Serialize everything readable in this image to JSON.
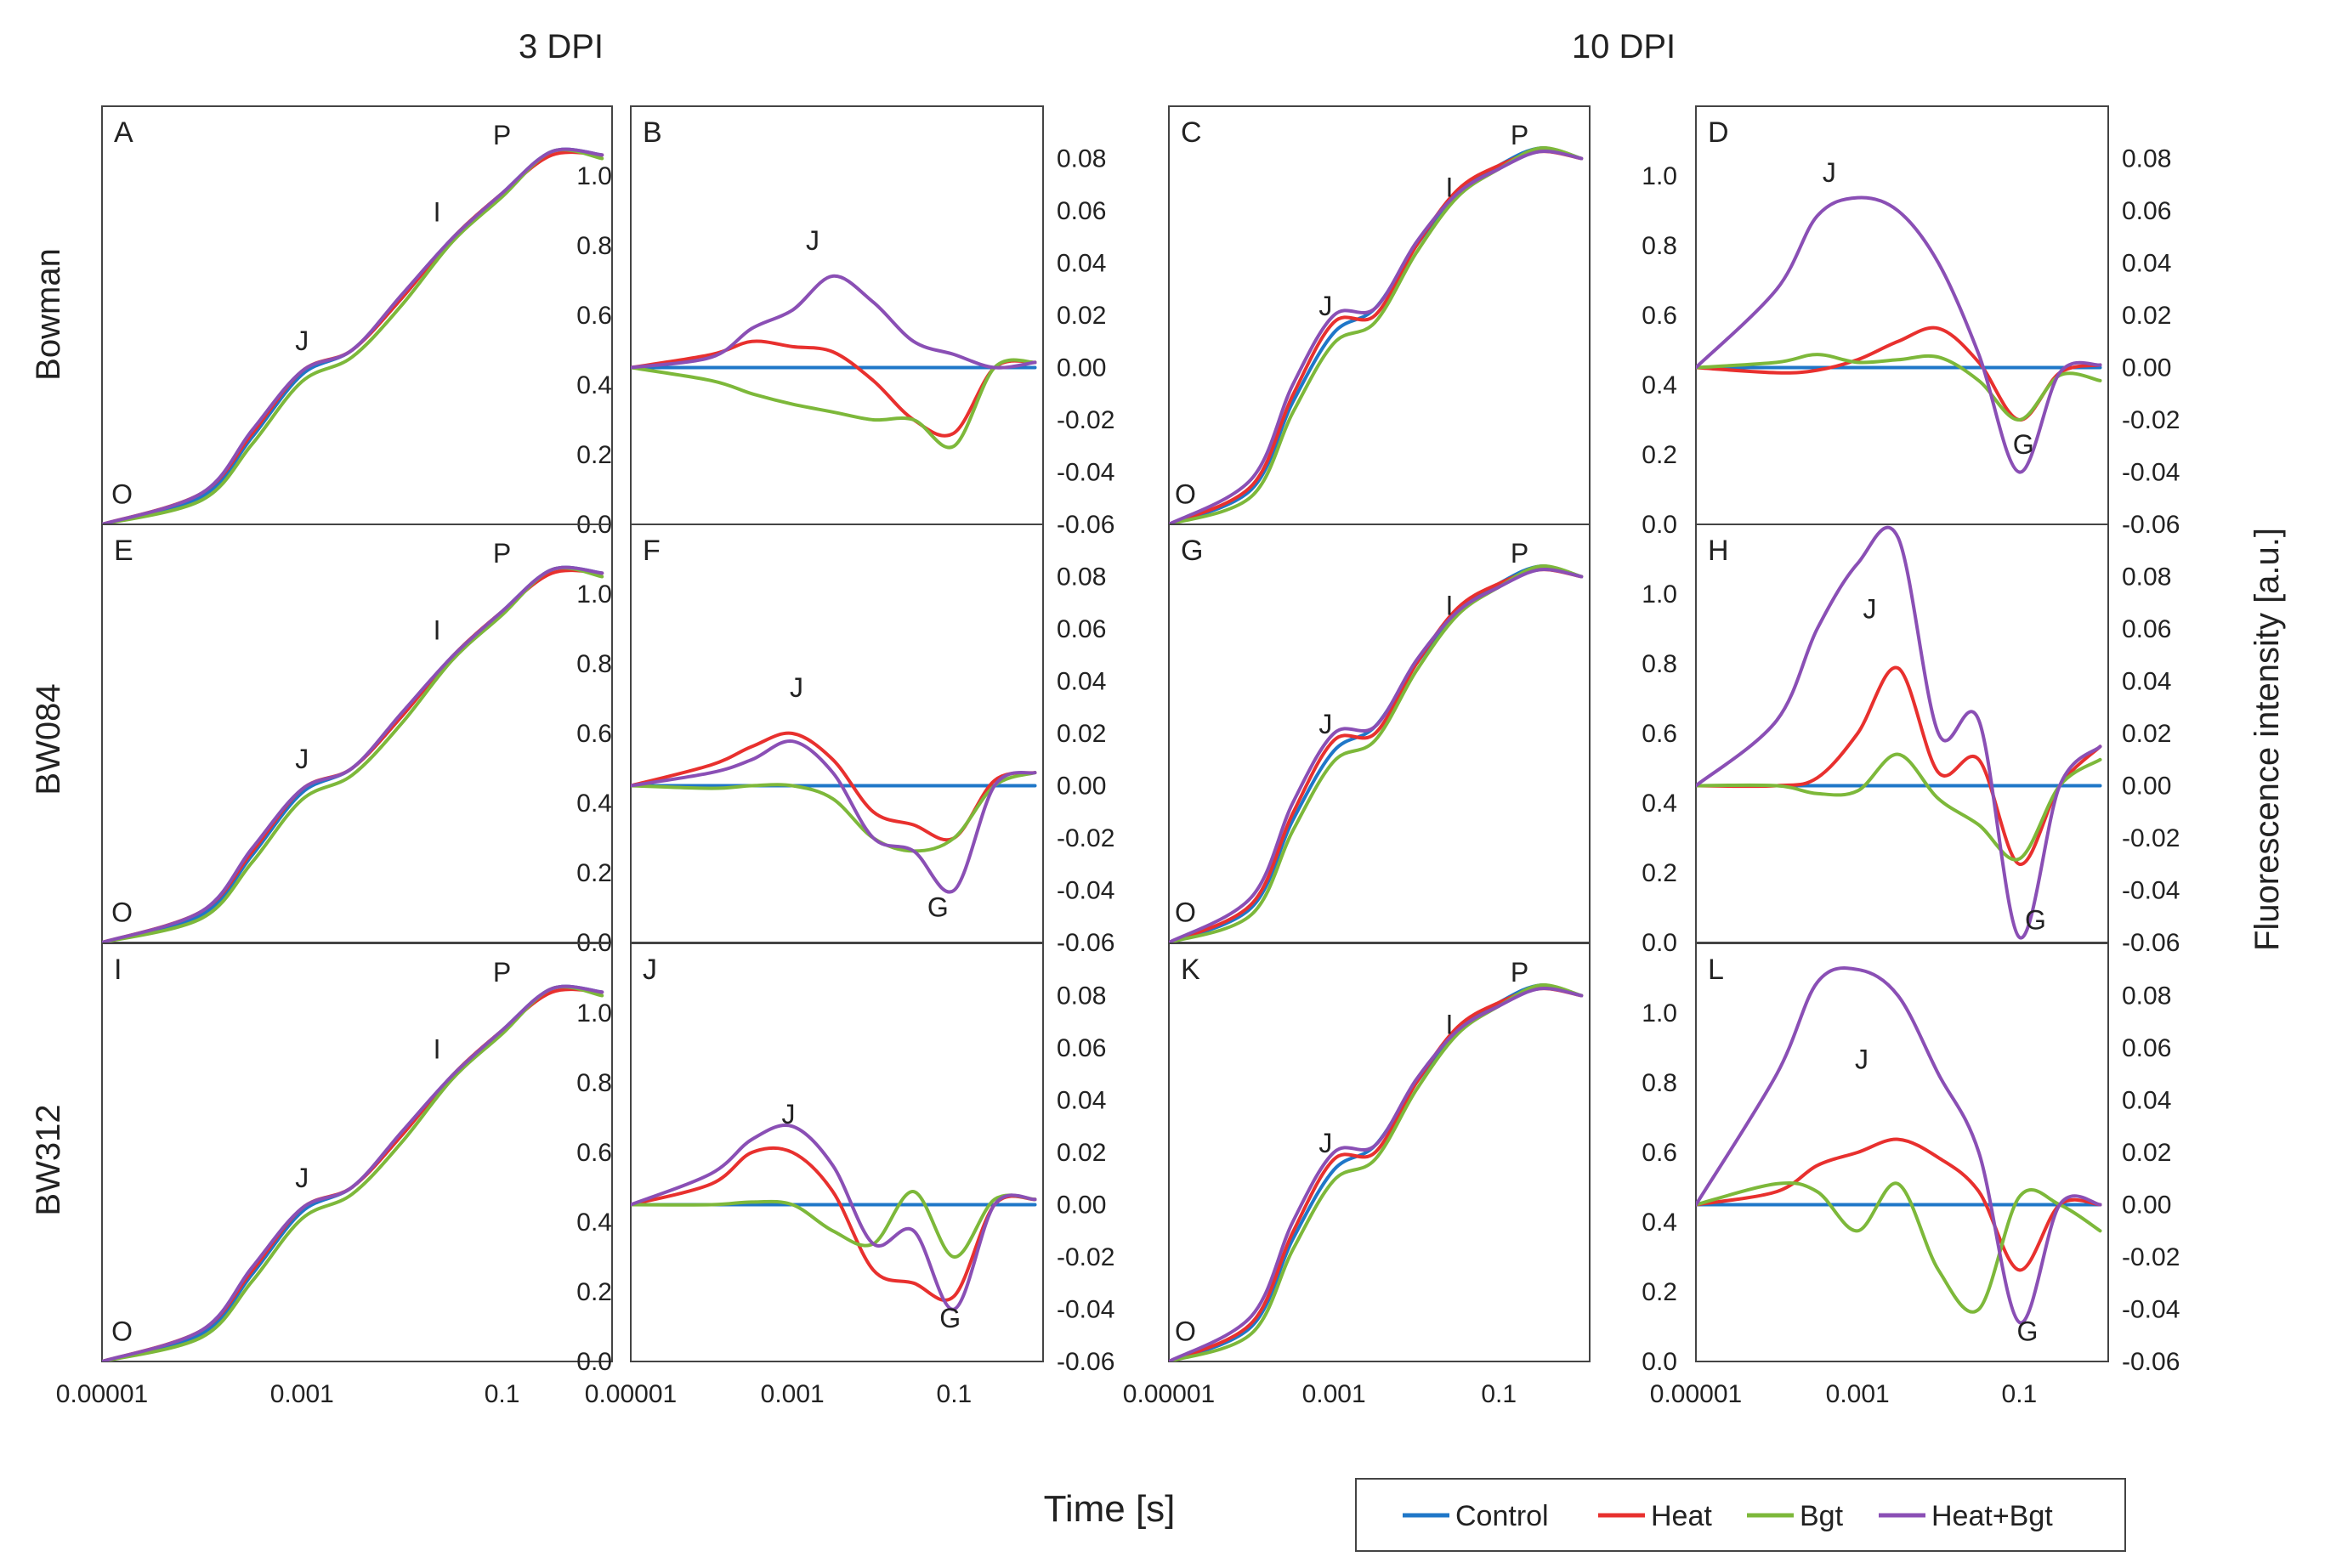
{
  "figure": {
    "column_titles": [
      "3 DPI",
      "10 DPI"
    ],
    "row_labels": [
      "Bowman",
      "BW084",
      "BW312"
    ],
    "xlabel": "Time [s]",
    "ylabel": "Fluorescence intensity [a.u.]"
  },
  "legend": [
    {
      "name": "Control",
      "color": "#1F77C8"
    },
    {
      "name": "Heat",
      "color": "#E8302E"
    },
    {
      "name": "Bgt",
      "color": "#7DB83A"
    },
    {
      "name": "Heat+Bgt",
      "color": "#8A4FB5"
    }
  ],
  "chart_data": {
    "type": "line",
    "x_scale": "log",
    "x_ticks": [
      "0.00001",
      "0.001",
      "0.1"
    ],
    "x_range": [
      -5,
      0.1
    ],
    "curve_axis": {
      "ylim": [
        0,
        1.2
      ],
      "ticks": [
        "0.0",
        "0.2",
        "0.4",
        "0.6",
        "0.8",
        "1.0"
      ]
    },
    "diff_axis": {
      "ylim": [
        -0.06,
        0.1
      ],
      "ticks": [
        "-0.06",
        "-0.04",
        "-0.02",
        "0.00",
        "0.02",
        "0.04",
        "0.06",
        "0.08"
      ]
    },
    "x_log": [
      -5,
      -4,
      -3.5,
      -3,
      -2.5,
      -2,
      -1.5,
      -1,
      -0.5,
      0
    ],
    "panels": [
      {
        "letter": "A",
        "kind": "curve",
        "labels": {
          "O": [
            -4.8,
            0.06
          ],
          "J": [
            -3,
            0.5
          ],
          "I": [
            -1.65,
            0.87
          ],
          "P": [
            -1,
            1.09
          ]
        },
        "series": [
          {
            "name": "Control",
            "values": [
              0,
              0.08,
              0.25,
              0.43,
              0.5,
              0.65,
              0.82,
              0.95,
              1.07,
              1.06
            ]
          },
          {
            "name": "Heat",
            "values": [
              0,
              0.09,
              0.26,
              0.44,
              0.5,
              0.65,
              0.82,
              0.95,
              1.06,
              1.06
            ]
          },
          {
            "name": "Bgt",
            "values": [
              0,
              0.07,
              0.23,
              0.41,
              0.48,
              0.63,
              0.81,
              0.94,
              1.07,
              1.05
            ]
          },
          {
            "name": "Heat+Bgt",
            "values": [
              0,
              0.09,
              0.27,
              0.44,
              0.5,
              0.66,
              0.82,
              0.95,
              1.07,
              1.06
            ]
          }
        ]
      },
      {
        "letter": "B",
        "kind": "diff",
        "labels": {
          "J": [
            -2.75,
            0.045
          ]
        },
        "series": [
          {
            "name": "Control",
            "values": [
              0,
              0,
              0,
              0,
              0,
              0,
              0,
              0,
              0,
              0
            ]
          },
          {
            "name": "Heat",
            "values": [
              0,
              0.005,
              0.01,
              0.008,
              0.006,
              -0.005,
              -0.02,
              -0.025,
              0,
              0.002
            ]
          },
          {
            "name": "Bgt",
            "values": [
              0,
              -0.005,
              -0.01,
              -0.014,
              -0.017,
              -0.02,
              -0.02,
              -0.03,
              0,
              0.002
            ]
          },
          {
            "name": "Heat+Bgt",
            "values": [
              0,
              0.004,
              0.015,
              0.022,
              0.035,
              0.025,
              0.01,
              0.005,
              0,
              0.002
            ]
          }
        ]
      },
      {
        "letter": "C",
        "kind": "curve",
        "labels": {
          "O": [
            -4.8,
            0.06
          ],
          "J": [
            -3.1,
            0.6
          ],
          "I": [
            -1.6,
            0.94
          ],
          "P": [
            -0.75,
            1.09
          ]
        },
        "series": [
          {
            "name": "Control",
            "values": [
              0,
              0.1,
              0.35,
              0.55,
              0.62,
              0.8,
              0.95,
              1.03,
              1.08,
              1.05
            ]
          },
          {
            "name": "Heat",
            "values": [
              0,
              0.11,
              0.37,
              0.58,
              0.6,
              0.8,
              0.96,
              1.03,
              1.07,
              1.05
            ]
          },
          {
            "name": "Bgt",
            "values": [
              0,
              0.08,
              0.32,
              0.52,
              0.58,
              0.78,
              0.94,
              1.02,
              1.08,
              1.05
            ]
          },
          {
            "name": "Heat+Bgt",
            "values": [
              0,
              0.13,
              0.4,
              0.6,
              0.62,
              0.81,
              0.95,
              1.02,
              1.07,
              1.05
            ]
          }
        ]
      },
      {
        "letter": "D",
        "kind": "diff",
        "labels": {
          "J": [
            -3.35,
            0.071
          ],
          "G": [
            -0.95,
            -0.033
          ]
        },
        "series": [
          {
            "name": "Control",
            "values": [
              0,
              0,
              0,
              0,
              0,
              0,
              0,
              0,
              0,
              0
            ]
          },
          {
            "name": "Heat",
            "values": [
              0,
              -0.002,
              -0.001,
              0.003,
              0.01,
              0.015,
              0.002,
              -0.02,
              -0.002,
              0.001
            ]
          },
          {
            "name": "Bgt",
            "values": [
              0,
              0.002,
              0.005,
              0.002,
              0.003,
              0.004,
              -0.005,
              -0.02,
              -0.003,
              -0.005
            ]
          },
          {
            "name": "Heat+Bgt",
            "values": [
              0,
              0.03,
              0.058,
              0.065,
              0.06,
              0.04,
              0.005,
              -0.04,
              -0.002,
              0.001
            ]
          }
        ]
      },
      {
        "letter": "E",
        "kind": "curve",
        "labels": {
          "O": [
            -4.8,
            0.06
          ],
          "J": [
            -3,
            0.5
          ],
          "I": [
            -1.65,
            0.87
          ],
          "P": [
            -1,
            1.09
          ]
        },
        "series": [
          {
            "name": "Control",
            "values": [
              0,
              0.08,
              0.25,
              0.43,
              0.5,
              0.65,
              0.82,
              0.95,
              1.07,
              1.06
            ]
          },
          {
            "name": "Heat",
            "values": [
              0,
              0.09,
              0.26,
              0.44,
              0.5,
              0.65,
              0.82,
              0.95,
              1.06,
              1.06
            ]
          },
          {
            "name": "Bgt",
            "values": [
              0,
              0.07,
              0.23,
              0.41,
              0.48,
              0.63,
              0.81,
              0.94,
              1.07,
              1.05
            ]
          },
          {
            "name": "Heat+Bgt",
            "values": [
              0,
              0.09,
              0.27,
              0.44,
              0.5,
              0.66,
              0.82,
              0.95,
              1.07,
              1.06
            ]
          }
        ]
      },
      {
        "letter": "F",
        "kind": "diff",
        "labels": {
          "J": [
            -2.95,
            0.034
          ],
          "G": [
            -1.2,
            -0.05
          ]
        },
        "series": [
          {
            "name": "Control",
            "values": [
              0,
              0,
              0,
              0,
              0,
              0,
              0,
              0,
              0,
              0
            ]
          },
          {
            "name": "Heat",
            "values": [
              0,
              0.008,
              0.015,
              0.02,
              0.01,
              -0.01,
              -0.015,
              -0.02,
              0.002,
              0.005
            ]
          },
          {
            "name": "Bgt",
            "values": [
              0,
              -0.001,
              0,
              0,
              -0.005,
              -0.02,
              -0.025,
              -0.02,
              0,
              0.005
            ]
          },
          {
            "name": "Heat+Bgt",
            "values": [
              0,
              0.005,
              0.01,
              0.017,
              0.005,
              -0.02,
              -0.025,
              -0.04,
              0,
              0.005
            ]
          }
        ]
      },
      {
        "letter": "G",
        "kind": "curve",
        "labels": {
          "O": [
            -4.8,
            0.06
          ],
          "J": [
            -3.1,
            0.6
          ],
          "I": [
            -1.6,
            0.94
          ],
          "P": [
            -0.75,
            1.09
          ]
        },
        "series": [
          {
            "name": "Control",
            "values": [
              0,
              0.1,
              0.35,
              0.55,
              0.62,
              0.8,
              0.95,
              1.03,
              1.08,
              1.05
            ]
          },
          {
            "name": "Heat",
            "values": [
              0,
              0.11,
              0.37,
              0.58,
              0.6,
              0.8,
              0.96,
              1.03,
              1.07,
              1.05
            ]
          },
          {
            "name": "Bgt",
            "values": [
              0,
              0.08,
              0.32,
              0.52,
              0.58,
              0.78,
              0.94,
              1.02,
              1.08,
              1.05
            ]
          },
          {
            "name": "Heat+Bgt",
            "values": [
              0,
              0.13,
              0.4,
              0.6,
              0.62,
              0.81,
              0.95,
              1.02,
              1.07,
              1.05
            ]
          }
        ]
      },
      {
        "letter": "H",
        "kind": "diff",
        "labels": {
          "J": [
            -2.85,
            0.064
          ],
          "G": [
            -0.8,
            -0.055
          ]
        },
        "series": [
          {
            "name": "Control",
            "values": [
              0,
              0,
              0,
              0,
              0,
              0,
              0,
              0,
              0,
              0
            ]
          },
          {
            "name": "Heat",
            "values": [
              0,
              0,
              0.003,
              0.02,
              0.045,
              0.005,
              0.01,
              -0.03,
              0,
              0.015
            ]
          },
          {
            "name": "Bgt",
            "values": [
              0,
              0,
              -0.003,
              -0.002,
              0.012,
              -0.005,
              -0.015,
              -0.028,
              0,
              0.01
            ]
          },
          {
            "name": "Heat+Bgt",
            "values": [
              0,
              0.025,
              0.06,
              0.085,
              0.095,
              0.02,
              0.025,
              -0.058,
              0,
              0.015
            ]
          }
        ]
      },
      {
        "letter": "I",
        "kind": "curve",
        "labels": {
          "O": [
            -4.8,
            0.06
          ],
          "J": [
            -3,
            0.5
          ],
          "I": [
            -1.65,
            0.87
          ],
          "P": [
            -1,
            1.09
          ]
        },
        "series": [
          {
            "name": "Control",
            "values": [
              0,
              0.08,
              0.25,
              0.43,
              0.5,
              0.65,
              0.82,
              0.95,
              1.07,
              1.06
            ]
          },
          {
            "name": "Heat",
            "values": [
              0,
              0.09,
              0.26,
              0.44,
              0.5,
              0.65,
              0.82,
              0.95,
              1.06,
              1.06
            ]
          },
          {
            "name": "Bgt",
            "values": [
              0,
              0.07,
              0.23,
              0.41,
              0.48,
              0.63,
              0.81,
              0.94,
              1.07,
              1.05
            ]
          },
          {
            "name": "Heat+Bgt",
            "values": [
              0,
              0.09,
              0.27,
              0.44,
              0.5,
              0.66,
              0.82,
              0.95,
              1.07,
              1.06
            ]
          }
        ]
      },
      {
        "letter": "J",
        "kind": "diff",
        "labels": {
          "J": [
            -3.05,
            0.031
          ],
          "G": [
            -1.05,
            -0.047
          ]
        },
        "series": [
          {
            "name": "Control",
            "values": [
              0,
              0,
              0,
              0,
              0,
              0,
              0,
              0,
              0,
              0
            ]
          },
          {
            "name": "Heat",
            "values": [
              0,
              0.008,
              0.02,
              0.02,
              0.005,
              -0.025,
              -0.03,
              -0.035,
              0,
              0.002
            ]
          },
          {
            "name": "Bgt",
            "values": [
              0,
              0,
              0.001,
              0,
              -0.01,
              -0.015,
              0.005,
              -0.02,
              0.002,
              0.002
            ]
          },
          {
            "name": "Heat+Bgt",
            "values": [
              0,
              0.012,
              0.025,
              0.03,
              0.015,
              -0.015,
              -0.01,
              -0.04,
              0,
              0.002
            ]
          }
        ]
      },
      {
        "letter": "K",
        "kind": "curve",
        "labels": {
          "O": [
            -4.8,
            0.06
          ],
          "J": [
            -3.1,
            0.6
          ],
          "I": [
            -1.6,
            0.94
          ],
          "P": [
            -0.75,
            1.09
          ]
        },
        "series": [
          {
            "name": "Control",
            "values": [
              0,
              0.1,
              0.35,
              0.55,
              0.62,
              0.8,
              0.95,
              1.03,
              1.08,
              1.05
            ]
          },
          {
            "name": "Heat",
            "values": [
              0,
              0.11,
              0.37,
              0.58,
              0.6,
              0.8,
              0.96,
              1.03,
              1.07,
              1.05
            ]
          },
          {
            "name": "Bgt",
            "values": [
              0,
              0.08,
              0.32,
              0.52,
              0.58,
              0.78,
              0.94,
              1.02,
              1.08,
              1.05
            ]
          },
          {
            "name": "Heat+Bgt",
            "values": [
              0,
              0.13,
              0.4,
              0.6,
              0.62,
              0.81,
              0.95,
              1.02,
              1.07,
              1.05
            ]
          }
        ]
      },
      {
        "letter": "L",
        "kind": "diff",
        "labels": {
          "J": [
            -2.95,
            0.052
          ],
          "G": [
            -0.9,
            -0.052
          ]
        },
        "series": [
          {
            "name": "Control",
            "values": [
              0,
              0,
              0,
              0,
              0,
              0,
              0,
              0,
              0,
              0
            ]
          },
          {
            "name": "Heat",
            "values": [
              0,
              0.005,
              0.015,
              0.02,
              0.025,
              0.018,
              0.005,
              -0.025,
              0,
              0
            ]
          },
          {
            "name": "Bgt",
            "values": [
              0,
              0.008,
              0.005,
              -0.01,
              0.008,
              -0.025,
              -0.04,
              0.003,
              0,
              -0.01
            ]
          },
          {
            "name": "Heat+Bgt",
            "values": [
              0,
              0.05,
              0.085,
              0.09,
              0.08,
              0.05,
              0.02,
              -0.045,
              0,
              0
            ]
          }
        ]
      }
    ]
  }
}
